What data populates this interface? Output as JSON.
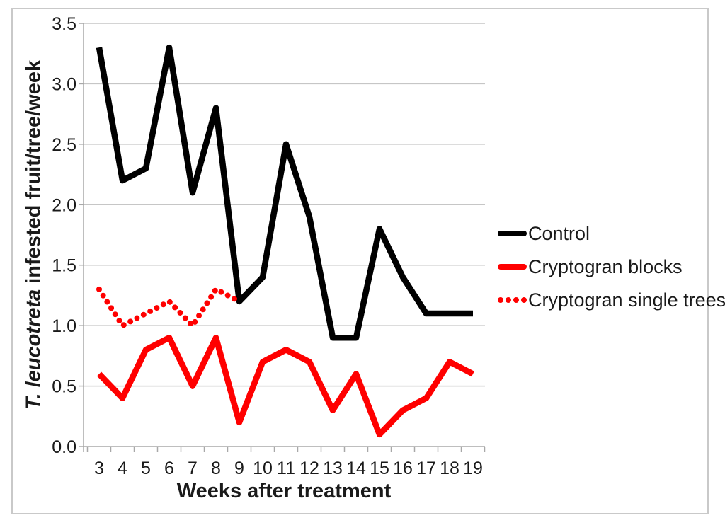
{
  "figure": {
    "background_color": "#ffffff",
    "frame_border_color": "#c9c9c9",
    "gridline_color": "#c6c6c6",
    "axis_color": "#a8a8a8",
    "text_color": "#1a1a1a"
  },
  "chart_data": {
    "type": "line",
    "title": "",
    "xlabel": "Weeks after treatment",
    "ylabel_italic": "T. leucotreta",
    "ylabel_rest": "infested fruit/tree/week",
    "x": [
      3,
      4,
      5,
      6,
      7,
      8,
      9,
      10,
      11,
      12,
      13,
      14,
      15,
      16,
      17,
      18,
      19
    ],
    "x_tick_labels": [
      "3",
      "4",
      "5",
      "6",
      "7",
      "8",
      "9",
      "10",
      "11",
      "12",
      "13",
      "14",
      "15",
      "16",
      "17",
      "18",
      "19"
    ],
    "y_ticks": [
      0.0,
      0.5,
      1.0,
      1.5,
      2.0,
      2.5,
      3.0,
      3.5
    ],
    "y_tick_labels": [
      "0.0",
      "0.5",
      "1.0",
      "1.5",
      "2.0",
      "2.5",
      "3.0",
      "3.5"
    ],
    "ylim": [
      0,
      3.5
    ],
    "grid": true,
    "legend_position": "right",
    "series": [
      {
        "name": "Control",
        "color": "#000000",
        "style": "solid",
        "x": [
          3,
          4,
          5,
          6,
          7,
          8,
          9,
          10,
          11,
          12,
          13,
          14,
          15,
          16,
          17,
          18,
          19
        ],
        "values": [
          3.3,
          2.2,
          2.3,
          3.3,
          2.1,
          2.8,
          1.2,
          1.4,
          2.5,
          1.9,
          0.9,
          0.9,
          1.8,
          1.4,
          1.1,
          1.1,
          1.1
        ]
      },
      {
        "name": "Cryptogran blocks",
        "color": "#ff0000",
        "style": "solid",
        "x": [
          3,
          4,
          5,
          6,
          7,
          8,
          9,
          10,
          11,
          12,
          13,
          14,
          15,
          16,
          17,
          18,
          19
        ],
        "values": [
          0.6,
          0.4,
          0.8,
          0.9,
          0.5,
          0.9,
          0.2,
          0.7,
          0.8,
          0.7,
          0.3,
          0.6,
          0.1,
          0.3,
          0.4,
          0.7,
          0.6
        ]
      },
      {
        "name": "Cryptogran single trees",
        "color": "#ff0000",
        "style": "dotted",
        "x": [
          3,
          4,
          5,
          6,
          7,
          8,
          9
        ],
        "values": [
          1.3,
          1.0,
          1.1,
          1.2,
          1.0,
          1.3,
          1.2
        ]
      }
    ]
  }
}
